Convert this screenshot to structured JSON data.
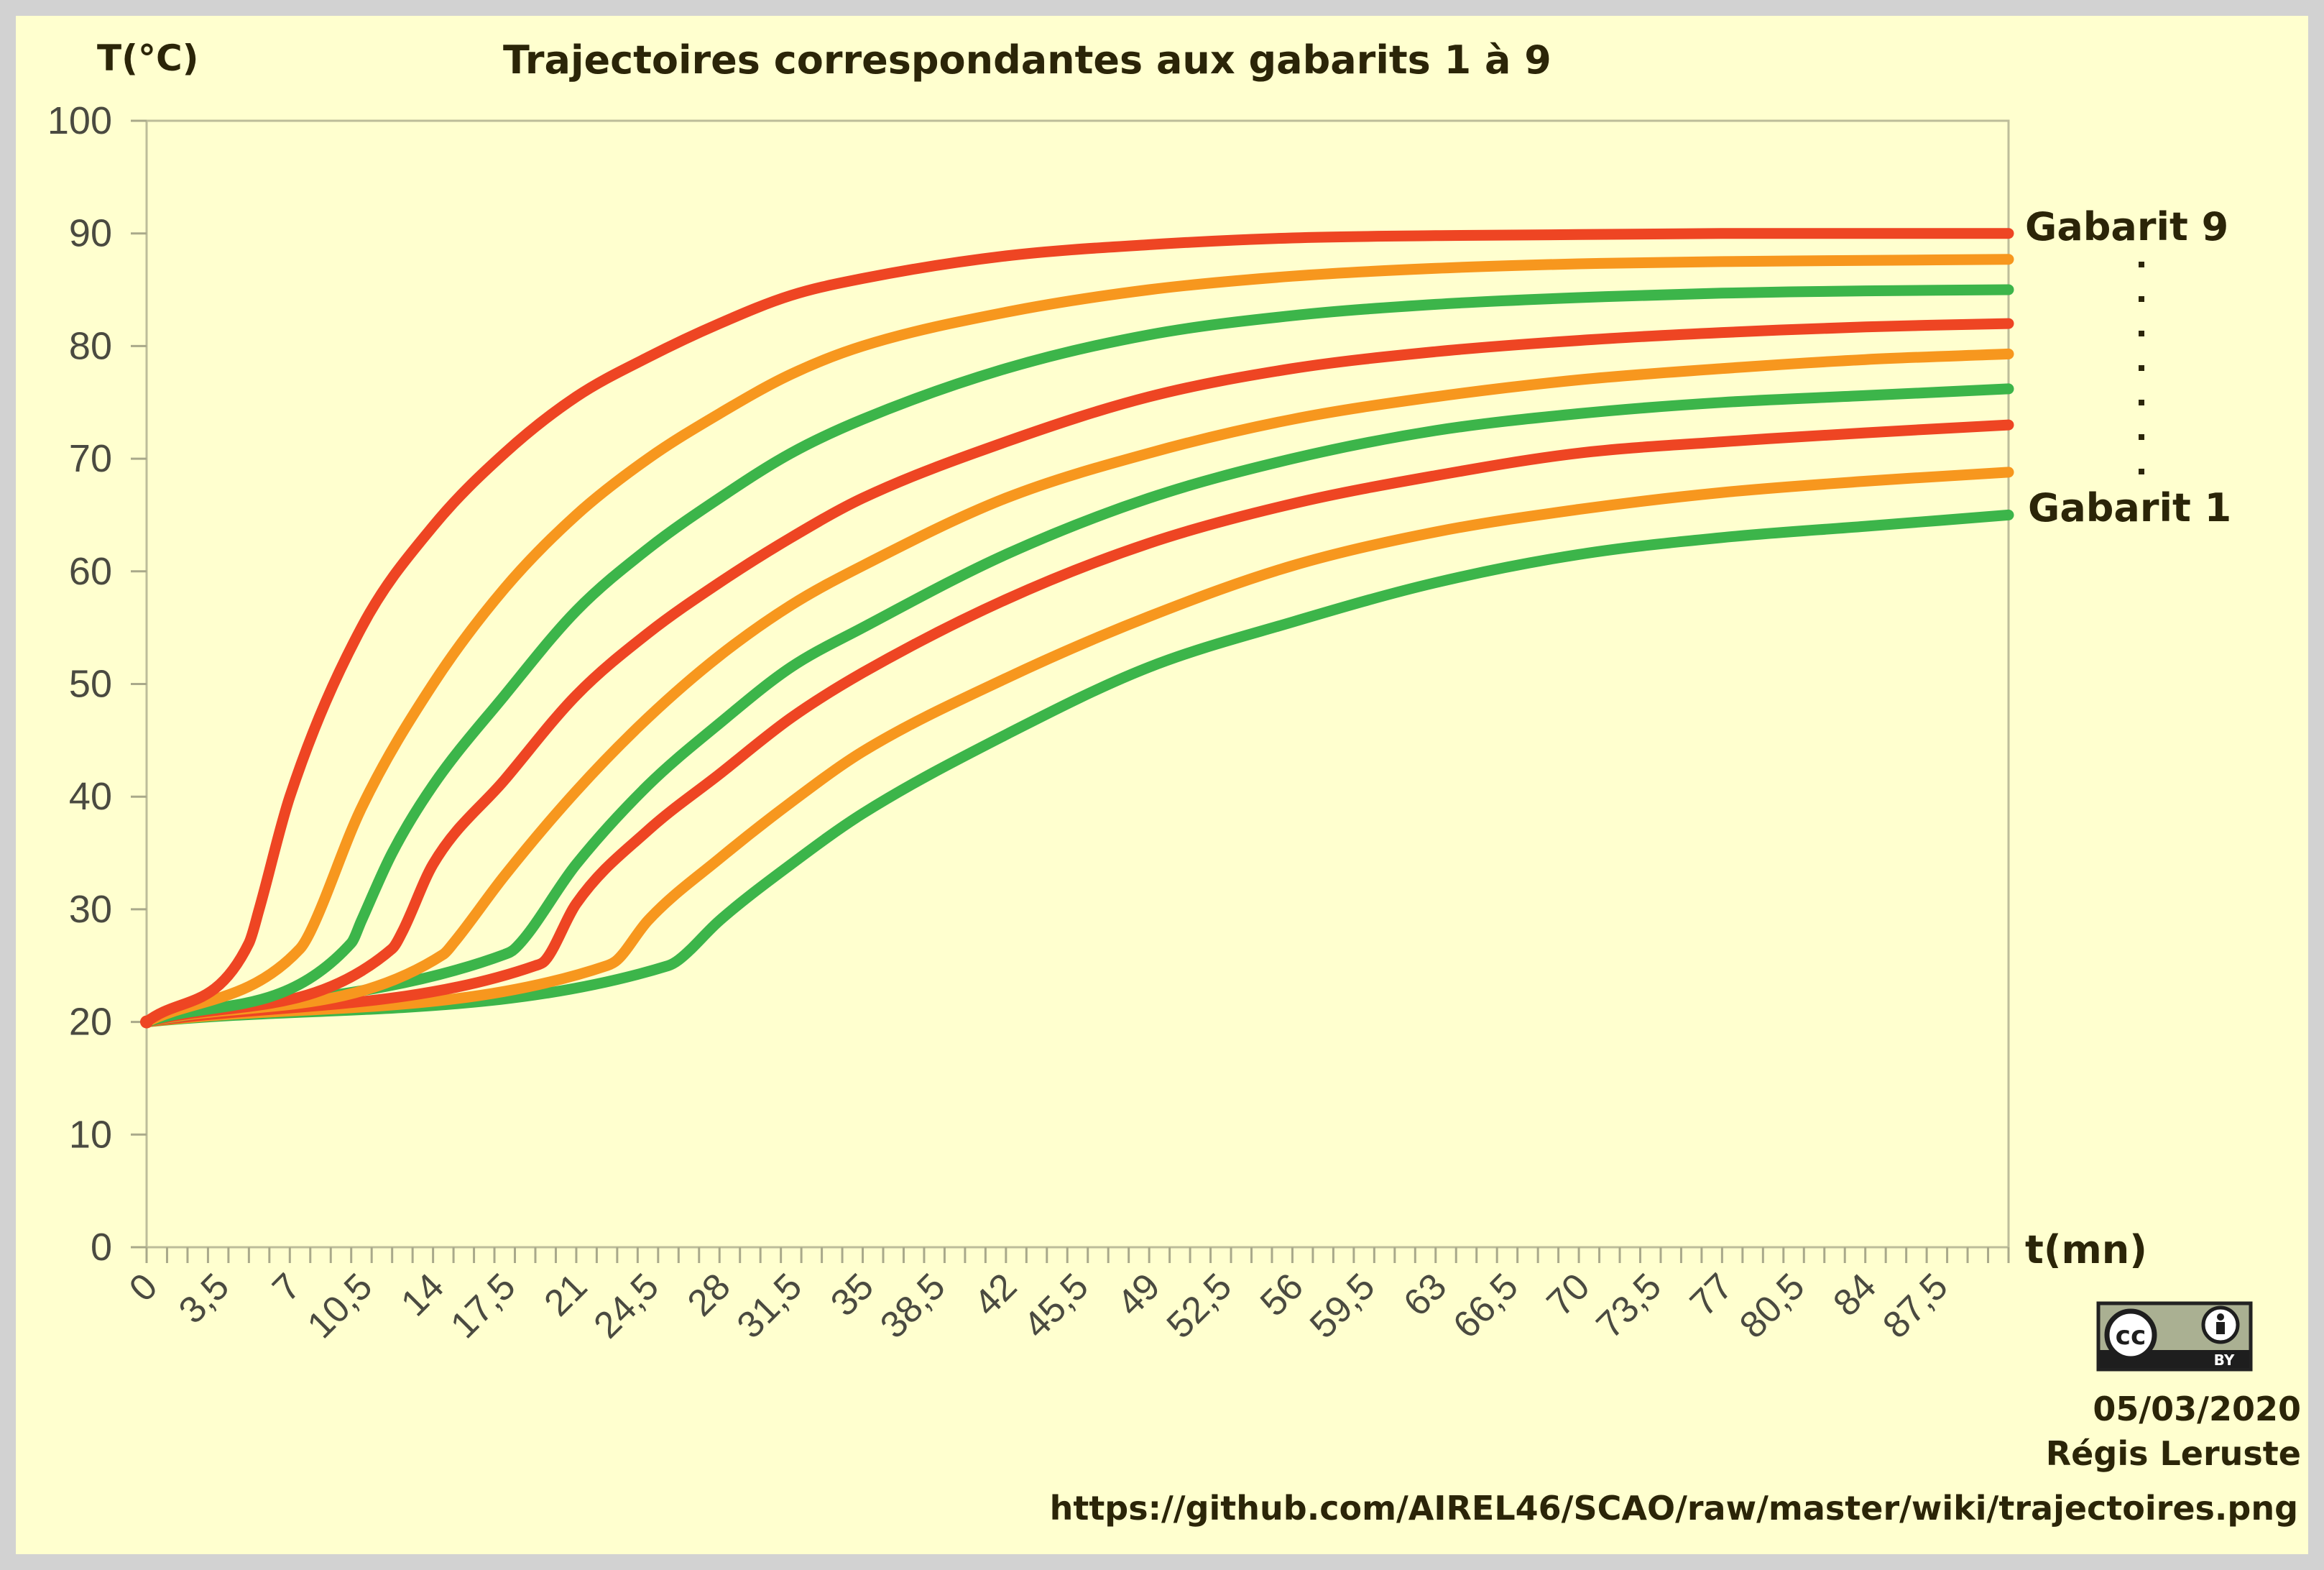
{
  "chart_data": {
    "type": "line",
    "title": "Trajectoires correspondantes aux gabarits 1 à 9",
    "ylabel": "T(°C)",
    "xlabel": "t(mn)",
    "ylim": [
      0,
      100
    ],
    "xlim": [
      0,
      91
    ],
    "y_ticks": [
      "0",
      "10",
      "20",
      "30",
      "40",
      "50",
      "60",
      "70",
      "80",
      "90",
      "100"
    ],
    "x_ticks": [
      "0",
      "3,5",
      "7",
      "10,5",
      "14",
      "17,5",
      "21",
      "24,5",
      "28",
      "31,5",
      "35",
      "38,5",
      "42",
      "45,5",
      "49",
      "52,5",
      "56",
      "59,5",
      "63",
      "66,5",
      "70",
      "73,5",
      "77",
      "80,5",
      "84",
      "87,5"
    ],
    "grid": false,
    "series_label_top": "Gabarit 9",
    "series_label_bottom": "Gabarit 1",
    "series": [
      {
        "gabarit": 1,
        "color": "#3cb54a",
        "t": [
          0,
          25.5,
          26,
          28,
          31.5,
          35,
          42,
          49,
          56,
          63,
          70,
          77,
          84,
          91
        ],
        "T": [
          20,
          25,
          25.5,
          29,
          34,
          38.5,
          45.5,
          51.5,
          55.5,
          59,
          61.5,
          63,
          64,
          65
        ]
      },
      {
        "gabarit": 2,
        "color": "#f7971e",
        "t": [
          0,
          22.5,
          23,
          24.5,
          28,
          31.5,
          35,
          42,
          49,
          56,
          63,
          70,
          77,
          84,
          91
        ],
        "T": [
          20,
          25,
          25.5,
          29,
          34.5,
          39.5,
          44,
          50.5,
          56,
          60.5,
          63.5,
          65.5,
          67,
          68,
          68.8
        ]
      },
      {
        "gabarit": 3,
        "color": "#ee4523",
        "t": [
          0,
          19,
          19.5,
          21,
          24.5,
          28,
          31.5,
          35,
          42,
          49,
          56,
          63,
          70,
          77,
          84,
          91
        ],
        "T": [
          20,
          25,
          25.5,
          30.5,
          37,
          42,
          47,
          51,
          57.5,
          62.5,
          66,
          68.5,
          70.5,
          71.5,
          72.3,
          73
        ]
      },
      {
        "gabarit": 4,
        "color": "#3cb54a",
        "t": [
          0,
          17.5,
          18,
          21,
          24.5,
          28,
          31.5,
          35,
          42,
          49,
          56,
          63,
          70,
          77,
          84,
          91
        ],
        "T": [
          20,
          26,
          26.5,
          34,
          41,
          46.5,
          51.5,
          55,
          61.5,
          66.5,
          70,
          72.5,
          74,
          75,
          75.6,
          76.2
        ]
      },
      {
        "gabarit": 5,
        "color": "#f7971e",
        "t": [
          0,
          14.5,
          15,
          17.5,
          21,
          24.5,
          28,
          31.5,
          35,
          42,
          49,
          56,
          63,
          70,
          77,
          84,
          91
        ],
        "T": [
          20,
          26,
          27,
          33,
          40.5,
          47,
          52.5,
          57,
          60.5,
          66.5,
          70.5,
          73.5,
          75.5,
          77,
          78,
          78.8,
          79.3
        ]
      },
      {
        "gabarit": 6,
        "color": "#ee4523",
        "t": [
          0,
          12,
          12.5,
          14,
          17.5,
          21,
          24.5,
          28,
          31.5,
          35,
          42,
          49,
          56,
          63,
          70,
          77,
          84,
          91
        ],
        "T": [
          20,
          26.5,
          28,
          34,
          41.5,
          49,
          54.5,
          59,
          63,
          66.5,
          71.5,
          75.5,
          78,
          79.5,
          80.5,
          81.2,
          81.7,
          82
        ]
      },
      {
        "gabarit": 7,
        "color": "#3cb54a",
        "t": [
          0,
          10,
          10.5,
          12,
          14,
          17.5,
          21,
          24.5,
          28,
          31.5,
          35,
          42,
          49,
          56,
          63,
          70,
          77,
          84,
          91
        ],
        "T": [
          20,
          27,
          29,
          35,
          41,
          49,
          56.5,
          62,
          66.5,
          70.5,
          73.5,
          78,
          81,
          82.7,
          83.7,
          84.3,
          84.7,
          84.9,
          85
        ]
      },
      {
        "gabarit": 8,
        "color": "#f7971e",
        "t": [
          0,
          7.5,
          8,
          10.5,
          14,
          17.5,
          21,
          24.5,
          28,
          31.5,
          35,
          42,
          49,
          56,
          63,
          70,
          77,
          84,
          91
        ],
        "T": [
          20,
          26.5,
          28,
          39,
          50,
          58.5,
          65,
          70,
          74,
          77.5,
          80,
          83,
          85,
          86.2,
          86.9,
          87.3,
          87.5,
          87.6,
          87.7
        ]
      },
      {
        "gabarit": 9,
        "color": "#ee4523",
        "t": [
          0,
          5,
          5.5,
          7,
          10.5,
          14,
          17.5,
          21,
          24.5,
          28,
          31.5,
          35,
          42,
          49,
          56,
          63,
          70,
          77,
          84,
          91
        ],
        "T": [
          20,
          27,
          30,
          40,
          55,
          64,
          70.5,
          75.5,
          79,
          82,
          84.5,
          86,
          88,
          89,
          89.6,
          89.8,
          89.9,
          90,
          90,
          90
        ]
      }
    ]
  },
  "annotations": {
    "date": "05/03/2020",
    "author": "Régis Leruste",
    "url": "https://github.com/AIREL46/SCAO/raw/master/wiki/trajectoires.png",
    "license_badge": "cc-by-icon",
    "license_text": "BY",
    "license_cc": "cc"
  }
}
